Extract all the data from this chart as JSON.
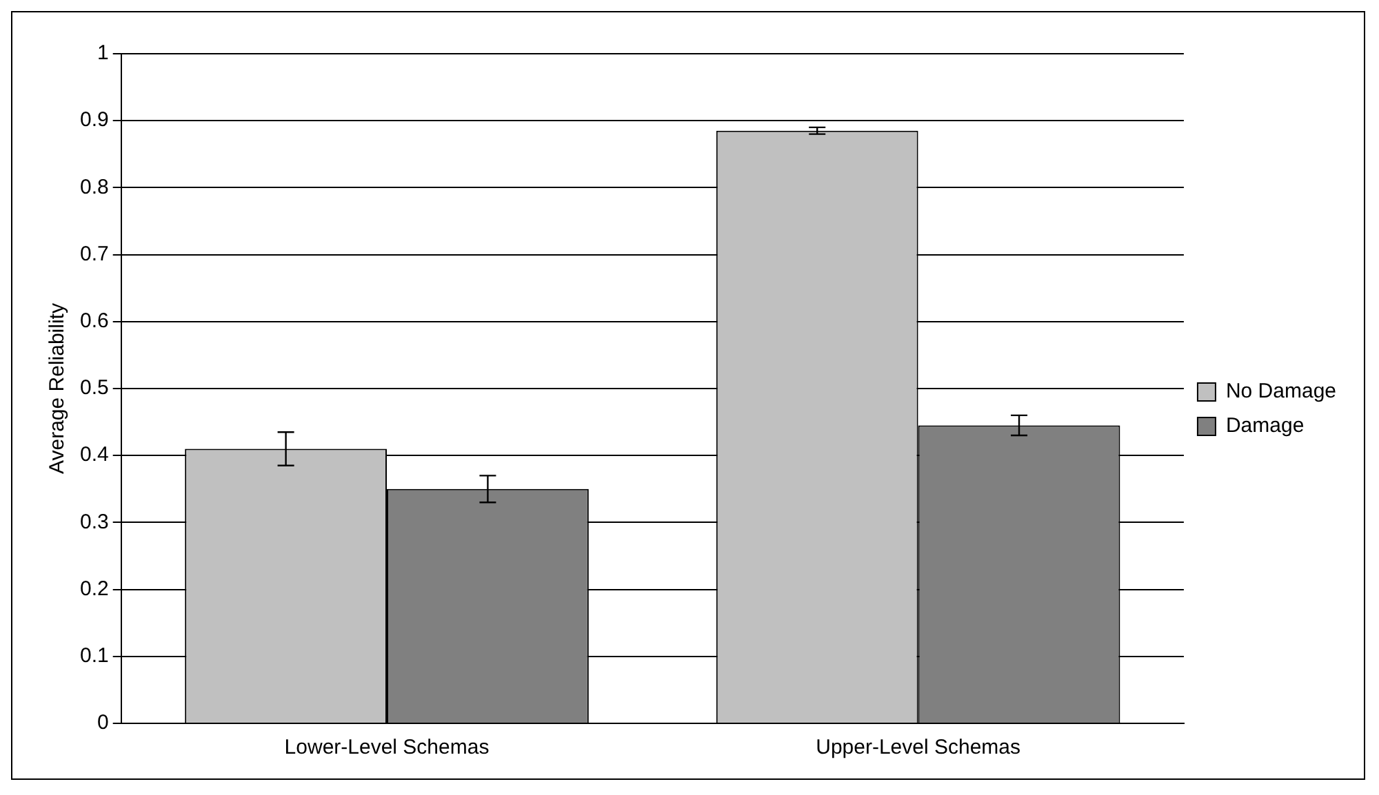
{
  "chart_data": {
    "type": "bar",
    "ylabel": "Average Reliability",
    "categories": [
      "Lower-Level Schemas",
      "Upper-Level Schemas"
    ],
    "series": [
      {
        "name": "No Damage",
        "color": "#c0c0c0",
        "values": [
          0.41,
          0.885
        ],
        "errors": [
          0.025,
          0.005
        ]
      },
      {
        "name": "Damage",
        "color": "#808080",
        "values": [
          0.35,
          0.445
        ],
        "errors": [
          0.02,
          0.015
        ]
      }
    ],
    "ylim": [
      0,
      1
    ],
    "yticks": [
      0,
      0.1,
      0.2,
      0.3,
      0.4,
      0.5,
      0.6,
      0.7,
      0.8,
      0.9,
      1
    ],
    "grid": "y",
    "legend": "right"
  }
}
